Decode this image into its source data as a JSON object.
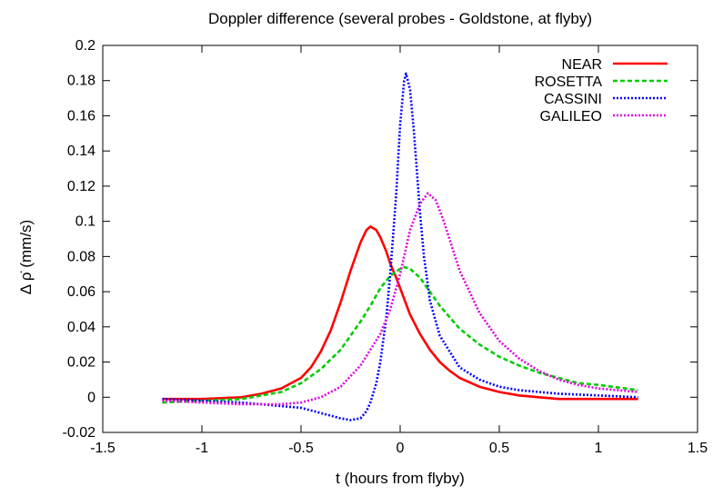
{
  "chart_data": {
    "type": "line",
    "title": "Doppler difference (several probes - Goldstone, at flyby)",
    "xlabel": "t (hours from flyby)",
    "ylabel": "Δ ρ̇ (mm/s)",
    "xlim": [
      -1.5,
      1.5
    ],
    "ylim": [
      -0.02,
      0.2
    ],
    "xticks": [
      -1.5,
      -1,
      -0.5,
      0,
      0.5,
      1,
      1.5
    ],
    "xtick_labels": [
      "-1.5",
      "-1",
      "-0.5",
      "0",
      "0.5",
      "1",
      "1.5"
    ],
    "yticks": [
      -0.02,
      0,
      0.02,
      0.04,
      0.06,
      0.08,
      0.1,
      0.12,
      0.14,
      0.16,
      0.18,
      0.2
    ],
    "ytick_labels": [
      "-0.02",
      "0",
      "0.02",
      "0.04",
      "0.06",
      "0.08",
      "0.1",
      "0.12",
      "0.14",
      "0.16",
      "0.18",
      "0.2"
    ],
    "grid": false,
    "legend_position": "top-right",
    "series": [
      {
        "name": "NEAR",
        "color": "#ff0000",
        "dash": "solid",
        "x": [
          -1.2,
          -1.0,
          -0.8,
          -0.7,
          -0.6,
          -0.5,
          -0.45,
          -0.4,
          -0.35,
          -0.3,
          -0.25,
          -0.2,
          -0.17,
          -0.15,
          -0.12,
          -0.1,
          -0.07,
          -0.05,
          -0.02,
          0.0,
          0.03,
          0.05,
          0.1,
          0.15,
          0.2,
          0.25,
          0.3,
          0.4,
          0.5,
          0.6,
          0.7,
          0.8,
          1.0,
          1.2
        ],
        "y": [
          -0.001,
          -0.001,
          0.0,
          0.002,
          0.005,
          0.011,
          0.017,
          0.026,
          0.038,
          0.054,
          0.072,
          0.088,
          0.095,
          0.097,
          0.095,
          0.091,
          0.083,
          0.076,
          0.068,
          0.062,
          0.053,
          0.047,
          0.036,
          0.027,
          0.02,
          0.015,
          0.011,
          0.006,
          0.003,
          0.001,
          0.0,
          -0.001,
          -0.001,
          -0.001
        ]
      },
      {
        "name": "ROSETTA",
        "color": "#00cc00",
        "dash": "dashed",
        "x": [
          -1.2,
          -1.0,
          -0.8,
          -0.6,
          -0.5,
          -0.4,
          -0.3,
          -0.2,
          -0.15,
          -0.1,
          -0.05,
          0.0,
          0.02,
          0.05,
          0.1,
          0.15,
          0.2,
          0.3,
          0.4,
          0.5,
          0.6,
          0.7,
          0.8,
          0.9,
          1.0,
          1.2
        ],
        "y": [
          -0.003,
          -0.002,
          -0.001,
          0.003,
          0.008,
          0.016,
          0.027,
          0.043,
          0.052,
          0.062,
          0.069,
          0.073,
          0.074,
          0.073,
          0.068,
          0.06,
          0.052,
          0.039,
          0.03,
          0.023,
          0.018,
          0.014,
          0.011,
          0.008,
          0.007,
          0.004
        ]
      },
      {
        "name": "CASSINI",
        "color": "#0000ff",
        "dash": "dotted",
        "x": [
          -1.2,
          -1.0,
          -0.8,
          -0.6,
          -0.5,
          -0.4,
          -0.3,
          -0.25,
          -0.2,
          -0.17,
          -0.15,
          -0.12,
          -0.1,
          -0.07,
          -0.05,
          -0.02,
          0.0,
          0.02,
          0.03,
          0.05,
          0.07,
          0.1,
          0.12,
          0.15,
          0.2,
          0.3,
          0.4,
          0.5,
          0.6,
          0.8,
          1.0,
          1.2
        ],
        "y": [
          -0.001,
          -0.002,
          -0.003,
          -0.005,
          -0.006,
          -0.009,
          -0.012,
          -0.013,
          -0.012,
          -0.008,
          -0.003,
          0.008,
          0.02,
          0.045,
          0.07,
          0.115,
          0.155,
          0.18,
          0.184,
          0.175,
          0.15,
          0.105,
          0.08,
          0.055,
          0.035,
          0.017,
          0.01,
          0.006,
          0.004,
          0.002,
          0.001,
          0.0
        ]
      },
      {
        "name": "GALILEO",
        "color": "#e000e0",
        "dash": "dotted",
        "x": [
          -1.2,
          -1.0,
          -0.8,
          -0.6,
          -0.5,
          -0.4,
          -0.3,
          -0.2,
          -0.1,
          -0.05,
          0.0,
          0.05,
          0.1,
          0.14,
          0.18,
          0.22,
          0.3,
          0.4,
          0.5,
          0.6,
          0.7,
          0.8,
          0.9,
          1.0,
          1.2
        ],
        "y": [
          -0.002,
          -0.003,
          -0.004,
          -0.004,
          -0.003,
          0.0,
          0.006,
          0.018,
          0.036,
          0.05,
          0.07,
          0.095,
          0.11,
          0.116,
          0.112,
          0.1,
          0.072,
          0.048,
          0.032,
          0.022,
          0.015,
          0.01,
          0.007,
          0.005,
          0.003
        ]
      }
    ]
  }
}
